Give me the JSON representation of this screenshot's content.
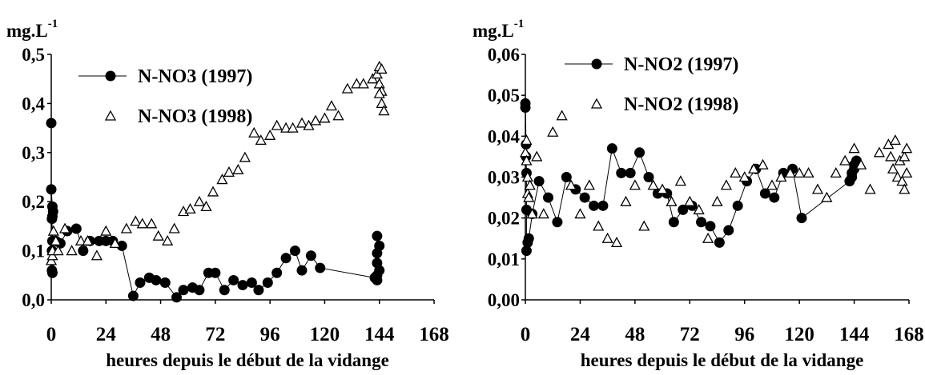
{
  "chart_data": [
    {
      "type": "scatter",
      "unit_label": "mg.L",
      "unit_exponent": "-1",
      "xlabel": "heures depuis le début de la vidange",
      "ylabel": "",
      "xlim": [
        0,
        168
      ],
      "ylim": [
        0,
        0.5
      ],
      "x_ticks": [
        "0",
        "24",
        "48",
        "72",
        "96",
        "120",
        "144",
        "168"
      ],
      "y_ticks": [
        "0,0",
        "0,1",
        "0,2",
        "0,3",
        "0,4",
        "0,5"
      ],
      "grid": false,
      "legend_position": "top-left",
      "series": [
        {
          "name": "N-NO3 (1997)",
          "marker": "filled-circle",
          "connected": true,
          "points": [
            [
              0,
              0.36
            ],
            [
              0,
              0.225
            ],
            [
              0.5,
              0.19
            ],
            [
              0.8,
              0.18
            ],
            [
              0.5,
              0.17
            ],
            [
              0.3,
              0.165
            ],
            [
              0.5,
              0.12
            ],
            [
              0.3,
              0.1
            ],
            [
              0.3,
              0.06
            ],
            [
              0.5,
              0.055
            ],
            [
              2,
              0.12
            ],
            [
              4,
              0.115
            ],
            [
              7,
              0.14
            ],
            [
              11,
              0.145
            ],
            [
              14,
              0.1
            ],
            [
              17,
              0.12
            ],
            [
              21,
              0.12
            ],
            [
              24,
              0.12
            ],
            [
              27,
              0.12
            ],
            [
              31,
              0.11
            ],
            [
              36,
              0.008
            ],
            [
              39,
              0.035
            ],
            [
              43,
              0.045
            ],
            [
              46,
              0.04
            ],
            [
              50,
              0.035
            ],
            [
              55,
              0.005
            ],
            [
              58,
              0.02
            ],
            [
              62,
              0.025
            ],
            [
              65,
              0.02
            ],
            [
              69,
              0.055
            ],
            [
              72,
              0.055
            ],
            [
              76,
              0.02
            ],
            [
              80,
              0.04
            ],
            [
              84,
              0.03
            ],
            [
              88,
              0.035
            ],
            [
              91,
              0.02
            ],
            [
              95,
              0.035
            ],
            [
              99,
              0.055
            ],
            [
              103,
              0.085
            ],
            [
              107,
              0.1
            ],
            [
              110,
              0.06
            ],
            [
              114,
              0.09
            ],
            [
              118,
              0.065
            ],
            [
              142,
              0.045
            ],
            [
              143,
              0.13
            ],
            [
              144,
              0.11
            ],
            [
              143,
              0.095
            ],
            [
              143,
              0.075
            ],
            [
              144,
              0.06
            ],
            [
              143,
              0.05
            ],
            [
              143,
              0.04
            ]
          ]
        },
        {
          "name": "N-NO3 (1998)",
          "marker": "open-triangle",
          "connected": false,
          "points": [
            [
              0,
              0.08
            ],
            [
              0.5,
              0.09
            ],
            [
              0.5,
              0.1
            ],
            [
              1,
              0.14
            ],
            [
              2,
              0.12
            ],
            [
              3,
              0.1
            ],
            [
              6,
              0.145
            ],
            [
              9,
              0.1
            ],
            [
              13,
              0.12
            ],
            [
              16,
              0.12
            ],
            [
              20,
              0.09
            ],
            [
              24,
              0.14
            ],
            [
              28,
              0.115
            ],
            [
              33,
              0.145
            ],
            [
              37,
              0.16
            ],
            [
              40,
              0.155
            ],
            [
              44,
              0.155
            ],
            [
              47,
              0.13
            ],
            [
              51,
              0.12
            ],
            [
              54,
              0.145
            ],
            [
              58,
              0.18
            ],
            [
              61,
              0.185
            ],
            [
              65,
              0.2
            ],
            [
              68,
              0.19
            ],
            [
              71,
              0.22
            ],
            [
              75,
              0.245
            ],
            [
              78,
              0.26
            ],
            [
              82,
              0.265
            ],
            [
              85,
              0.29
            ],
            [
              89,
              0.34
            ],
            [
              92,
              0.325
            ],
            [
              96,
              0.335
            ],
            [
              99,
              0.355
            ],
            [
              103,
              0.35
            ],
            [
              106,
              0.35
            ],
            [
              110,
              0.36
            ],
            [
              113,
              0.355
            ],
            [
              116,
              0.365
            ],
            [
              120,
              0.37
            ],
            [
              123,
              0.395
            ],
            [
              126,
              0.375
            ],
            [
              130,
              0.43
            ],
            [
              134,
              0.44
            ],
            [
              137,
              0.44
            ],
            [
              141,
              0.45
            ],
            [
              143,
              0.46
            ],
            [
              144,
              0.475
            ],
            [
              145,
              0.47
            ],
            [
              144,
              0.44
            ],
            [
              145,
              0.425
            ],
            [
              144,
              0.42
            ],
            [
              145,
              0.4
            ],
            [
              146,
              0.385
            ]
          ]
        }
      ]
    },
    {
      "type": "scatter",
      "unit_label": "mg.L",
      "unit_exponent": "-1",
      "xlabel": "heures depuis le début de la vidange",
      "ylabel": "",
      "xlim": [
        0,
        168
      ],
      "ylim": [
        0,
        0.06
      ],
      "x_ticks": [
        "0",
        "24",
        "48",
        "72",
        "96",
        "120",
        "144",
        "168"
      ],
      "y_ticks": [
        "0,00",
        "0,01",
        "0,02",
        "0,03",
        "0,04",
        "0,05",
        "0,06"
      ],
      "grid": false,
      "legend_position": "top-center",
      "series": [
        {
          "name": "N-NO2 (1997)",
          "marker": "filled-circle",
          "connected": true,
          "points": [
            [
              0,
              0.048
            ],
            [
              0,
              0.047
            ],
            [
              0.3,
              0.038
            ],
            [
              0.3,
              0.035
            ],
            [
              0.5,
              0.031
            ],
            [
              0.5,
              0.022
            ],
            [
              0.5,
              0.012
            ],
            [
              1,
              0.014
            ],
            [
              1.5,
              0.015
            ],
            [
              3,
              0.021
            ],
            [
              6,
              0.029
            ],
            [
              10,
              0.025
            ],
            [
              14,
              0.019
            ],
            [
              18,
              0.03
            ],
            [
              22,
              0.027
            ],
            [
              26,
              0.025
            ],
            [
              30,
              0.023
            ],
            [
              34,
              0.023
            ],
            [
              38,
              0.037
            ],
            [
              42,
              0.031
            ],
            [
              46,
              0.031
            ],
            [
              50,
              0.036
            ],
            [
              54,
              0.03
            ],
            [
              58,
              0.026
            ],
            [
              62,
              0.026
            ],
            [
              65,
              0.019
            ],
            [
              69,
              0.022
            ],
            [
              73,
              0.023
            ],
            [
              77,
              0.019
            ],
            [
              81,
              0.018
            ],
            [
              85,
              0.014
            ],
            [
              89,
              0.017
            ],
            [
              93,
              0.023
            ],
            [
              97,
              0.029
            ],
            [
              101,
              0.032
            ],
            [
              105,
              0.026
            ],
            [
              109,
              0.025
            ],
            [
              113,
              0.031
            ],
            [
              117,
              0.032
            ],
            [
              121,
              0.02
            ],
            [
              142,
              0.029
            ],
            [
              143,
              0.031
            ],
            [
              144,
              0.033
            ],
            [
              145,
              0.034
            ],
            [
              144,
              0.032
            ],
            [
              143,
              0.03
            ]
          ]
        },
        {
          "name": "N-NO2 (1998)",
          "marker": "open-triangle",
          "connected": false,
          "points": [
            [
              0,
              0.036
            ],
            [
              0.5,
              0.039
            ],
            [
              0.5,
              0.034
            ],
            [
              1,
              0.03
            ],
            [
              1,
              0.026
            ],
            [
              1.5,
              0.025
            ],
            [
              2,
              0.028
            ],
            [
              3,
              0.021
            ],
            [
              5,
              0.035
            ],
            [
              8,
              0.021
            ],
            [
              12,
              0.041
            ],
            [
              16,
              0.045
            ],
            [
              20,
              0.028
            ],
            [
              24,
              0.021
            ],
            [
              28,
              0.028
            ],
            [
              32,
              0.018
            ],
            [
              36,
              0.015
            ],
            [
              40,
              0.014
            ],
            [
              44,
              0.024
            ],
            [
              48,
              0.028
            ],
            [
              52,
              0.018
            ],
            [
              56,
              0.028
            ],
            [
              60,
              0.027
            ],
            [
              64,
              0.024
            ],
            [
              68,
              0.029
            ],
            [
              72,
              0.024
            ],
            [
              76,
              0.022
            ],
            [
              80,
              0.015
            ],
            [
              84,
              0.024
            ],
            [
              88,
              0.028
            ],
            [
              92,
              0.031
            ],
            [
              96,
              0.03
            ],
            [
              100,
              0.032
            ],
            [
              104,
              0.033
            ],
            [
              108,
              0.028
            ],
            [
              112,
              0.03
            ],
            [
              116,
              0.031
            ],
            [
              120,
              0.031
            ],
            [
              124,
              0.031
            ],
            [
              128,
              0.027
            ],
            [
              132,
              0.025
            ],
            [
              136,
              0.031
            ],
            [
              140,
              0.034
            ],
            [
              144,
              0.037
            ],
            [
              147,
              0.033
            ],
            [
              151,
              0.027
            ],
            [
              155,
              0.036
            ],
            [
              159,
              0.038
            ],
            [
              160,
              0.035
            ],
            [
              161,
              0.032
            ],
            [
              162,
              0.039
            ],
            [
              163,
              0.03
            ],
            [
              164,
              0.034
            ],
            [
              165,
              0.029
            ],
            [
              166,
              0.035
            ],
            [
              166,
              0.027
            ],
            [
              167,
              0.031
            ],
            [
              167,
              0.037
            ]
          ]
        }
      ]
    }
  ]
}
